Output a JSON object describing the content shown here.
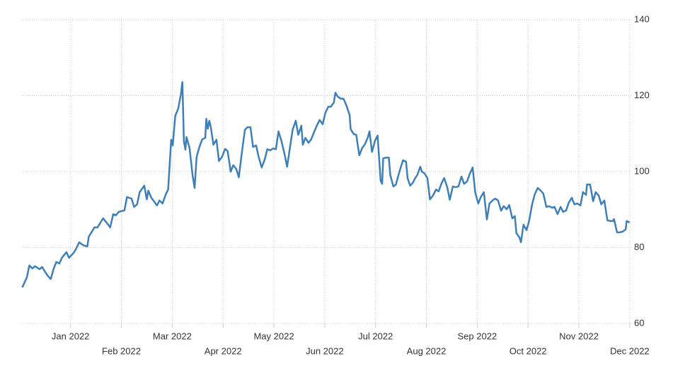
{
  "chart_data": {
    "type": "line",
    "color": "#3f7fb8",
    "grid": true,
    "xlim": [
      -0.97,
      11.03
    ],
    "xticks": [
      {
        "value": 0,
        "label": "Jan 2022"
      },
      {
        "value": 1,
        "label": "Feb 2022"
      },
      {
        "value": 2,
        "label": "Mar 2022"
      },
      {
        "value": 3,
        "label": "Apr 2022"
      },
      {
        "value": 4,
        "label": "May 2022"
      },
      {
        "value": 5,
        "label": "Jun 2022"
      },
      {
        "value": 6,
        "label": "Jul 2022"
      },
      {
        "value": 7,
        "label": "Aug 2022"
      },
      {
        "value": 8,
        "label": "Sep 2022"
      },
      {
        "value": 9,
        "label": "Oct 2022"
      },
      {
        "value": 10,
        "label": "Nov 2022"
      },
      {
        "value": 11,
        "label": "Dec 2022"
      }
    ],
    "ylim": [
      60,
      140
    ],
    "yticks": [
      60,
      80,
      100,
      120,
      140
    ],
    "x": [
      -0.95,
      -0.86,
      -0.81,
      -0.75,
      -0.7,
      -0.61,
      -0.56,
      -0.5,
      -0.45,
      -0.39,
      -0.33,
      -0.28,
      -0.22,
      -0.17,
      -0.08,
      -0.03,
      0.06,
      0.11,
      0.17,
      0.25,
      0.33,
      0.36,
      0.42,
      0.47,
      0.53,
      0.58,
      0.64,
      0.72,
      0.78,
      0.84,
      0.89,
      0.95,
      1.0,
      1.06,
      1.11,
      1.2,
      1.25,
      1.31,
      1.36,
      1.45,
      1.5,
      1.53,
      1.59,
      1.64,
      1.7,
      1.75,
      1.81,
      1.87,
      1.92,
      1.98,
      2.01,
      2.06,
      2.12,
      2.17,
      2.2,
      2.23,
      2.26,
      2.28,
      2.34,
      2.4,
      2.44,
      2.48,
      2.53,
      2.59,
      2.65,
      2.67,
      2.7,
      2.73,
      2.76,
      2.81,
      2.87,
      2.92,
      2.98,
      3.04,
      3.09,
      3.15,
      3.2,
      3.26,
      3.31,
      3.37,
      3.43,
      3.48,
      3.54,
      3.59,
      3.65,
      3.7,
      3.76,
      3.82,
      3.87,
      3.93,
      3.98,
      4.04,
      4.09,
      4.15,
      4.21,
      4.26,
      4.32,
      4.37,
      4.43,
      4.48,
      4.54,
      4.57,
      4.62,
      4.68,
      4.73,
      4.79,
      4.85,
      4.9,
      4.96,
      5.01,
      5.07,
      5.12,
      5.18,
      5.21,
      5.26,
      5.32,
      5.37,
      5.43,
      5.49,
      5.51,
      5.57,
      5.62,
      5.68,
      5.74,
      5.79,
      5.85,
      5.88,
      5.93,
      5.99,
      6.04,
      6.1,
      6.13,
      6.15,
      6.21,
      6.26,
      6.29,
      6.35,
      6.4,
      6.43,
      6.49,
      6.54,
      6.6,
      6.63,
      6.68,
      6.74,
      6.77,
      6.82,
      6.88,
      6.91,
      6.96,
      7.02,
      7.07,
      7.13,
      7.19,
      7.24,
      7.3,
      7.35,
      7.41,
      7.46,
      7.52,
      7.57,
      7.63,
      7.69,
      7.74,
      7.8,
      7.85,
      7.91,
      7.96,
      8.02,
      8.07,
      8.13,
      8.19,
      8.24,
      8.3,
      8.35,
      8.41,
      8.47,
      8.52,
      8.58,
      8.63,
      8.69,
      8.74,
      8.77,
      8.83,
      8.86,
      8.91,
      8.97,
      9.02,
      9.08,
      9.13,
      9.19,
      9.25,
      9.3,
      9.36,
      9.41,
      9.47,
      9.52,
      9.58,
      9.64,
      9.69,
      9.75,
      9.8,
      9.86,
      9.91,
      9.97,
      10.03,
      10.08,
      10.14,
      10.16,
      10.22,
      10.28,
      10.33,
      10.39,
      10.44,
      10.5,
      10.56,
      10.61,
      10.67,
      10.69,
      10.75,
      10.8,
      10.86,
      10.92,
      10.94,
      11.0
    ],
    "values": [
      69.5,
      72.1,
      75.3,
      74.5,
      75.1,
      74.3,
      74.9,
      73.6,
      72.6,
      71.7,
      74.5,
      76.2,
      75.8,
      77.3,
      78.8,
      77.3,
      78.6,
      79.7,
      81.4,
      80.6,
      80.3,
      82.9,
      84.2,
      85.3,
      85.3,
      86.4,
      87.7,
      86.4,
      85.3,
      88.8,
      88.5,
      89.4,
      89.6,
      89.8,
      93.3,
      92.9,
      90.7,
      91.4,
      94.6,
      96.3,
      92.7,
      95.0,
      93.1,
      92.2,
      91.1,
      92.4,
      91.6,
      93.9,
      95.3,
      108.4,
      106.9,
      114.7,
      116.7,
      120.3,
      123.6,
      108.0,
      105.8,
      109.1,
      106.3,
      99.1,
      95.7,
      103.9,
      106.3,
      108.5,
      108.9,
      113.9,
      111.3,
      113.4,
      111.7,
      107.1,
      108.4,
      102.8,
      103.9,
      106.0,
      105.4,
      100.0,
      101.7,
      100.7,
      98.5,
      105.0,
      111.0,
      111.7,
      111.7,
      106.5,
      106.9,
      103.9,
      101.1,
      103.2,
      105.9,
      105.6,
      106.1,
      105.9,
      110.6,
      108.0,
      104.6,
      101.3,
      106.7,
      111.1,
      113.4,
      109.7,
      112.1,
      107.1,
      108.9,
      107.6,
      108.4,
      110.4,
      112.3,
      113.6,
      112.5,
      115.4,
      117.1,
      117.1,
      118.2,
      120.8,
      119.7,
      119.2,
      119.2,
      117.3,
      114.9,
      111.2,
      109.9,
      109.7,
      104.3,
      106.3,
      107.2,
      109.1,
      110.6,
      105.2,
      108.2,
      109.5,
      97.6,
      96.8,
      103.5,
      103.7,
      103.7,
      99.1,
      96.1,
      96.6,
      98.1,
      100.9,
      103.0,
      102.6,
      98.3,
      96.3,
      97.2,
      98.1,
      99.1,
      101.3,
      100.0,
      99.6,
      98.3,
      92.7,
      93.7,
      95.3,
      94.8,
      97.0,
      98.3,
      95.9,
      92.6,
      96.1,
      95.9,
      96.1,
      98.7,
      96.8,
      97.4,
      99.3,
      101.1,
      94.6,
      91.6,
      93.3,
      94.6,
      87.4,
      91.6,
      92.4,
      92.9,
      92.4,
      89.7,
      90.9,
      90.1,
      91.2,
      87.7,
      88.3,
      83.8,
      82.7,
      81.4,
      86.0,
      84.6,
      87.0,
      91.4,
      94.0,
      95.7,
      95.0,
      94.2,
      90.7,
      90.9,
      90.5,
      90.7,
      88.8,
      90.7,
      89.4,
      89.8,
      91.8,
      93.1,
      91.4,
      91.6,
      91.1,
      94.6,
      93.9,
      96.6,
      96.6,
      92.2,
      94.6,
      93.7,
      91.4,
      92.4,
      87.2,
      87.0,
      87.0,
      87.5,
      84.0,
      84.0,
      84.2,
      84.8,
      87.0,
      86.6
    ]
  }
}
